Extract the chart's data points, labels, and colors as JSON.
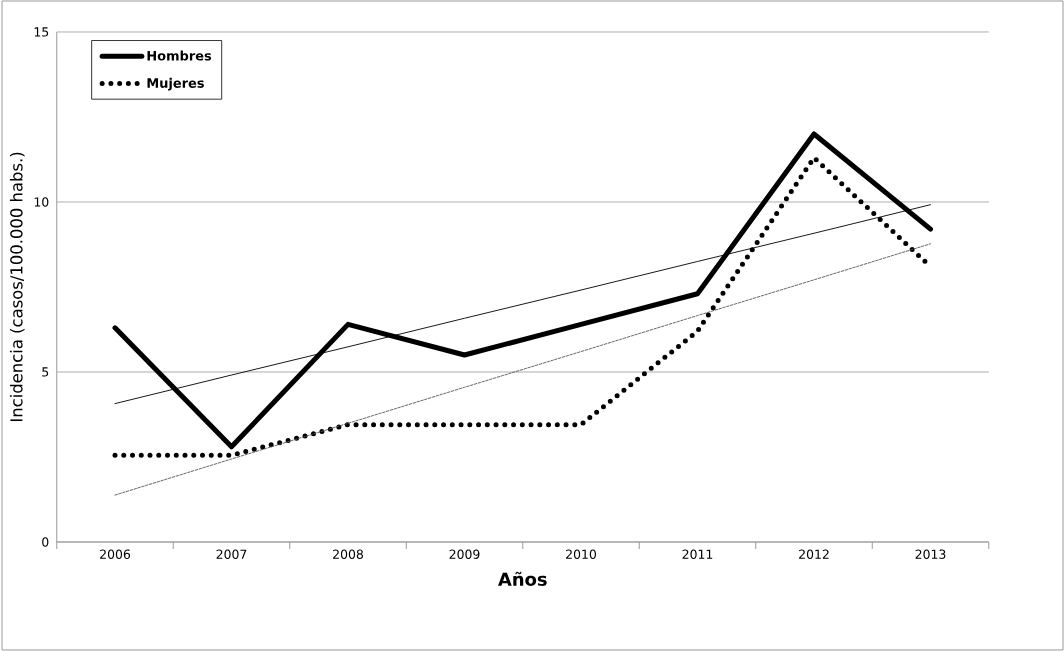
{
  "chart_data": {
    "type": "line",
    "xlabel": "Años",
    "ylabel": "Incidencia (casos/100.000 habs.)",
    "categories": [
      "2006",
      "2007",
      "2008",
      "2009",
      "2010",
      "2011",
      "2012",
      "2013"
    ],
    "series": [
      {
        "name": "Hombres",
        "color": "#000000",
        "line_style": "solid",
        "values": [
          6.3,
          2.8,
          6.4,
          5.5,
          6.4,
          7.3,
          12.0,
          9.2
        ]
      },
      {
        "name": "Mujeres",
        "color": "#000000",
        "line_style": "dotted",
        "values": [
          2.55,
          2.55,
          3.45,
          3.45,
          3.45,
          6.2,
          11.3,
          8.1
        ]
      },
      {
        "color": "#000000",
        "line_style": "solid",
        "values": [
          4.07,
          4.91,
          5.74,
          6.58,
          7.41,
          8.25,
          9.08,
          9.92
        ]
      },
      {
        "color": "#555555",
        "line_style": "dashed",
        "values": [
          1.38,
          2.44,
          3.49,
          4.55,
          5.6,
          6.66,
          7.71,
          8.77
        ]
      }
    ],
    "ylim": [
      0,
      15
    ],
    "yticks": [
      0,
      5,
      10,
      15
    ],
    "grid": "y",
    "legend": "top left",
    "marker": "none"
  }
}
